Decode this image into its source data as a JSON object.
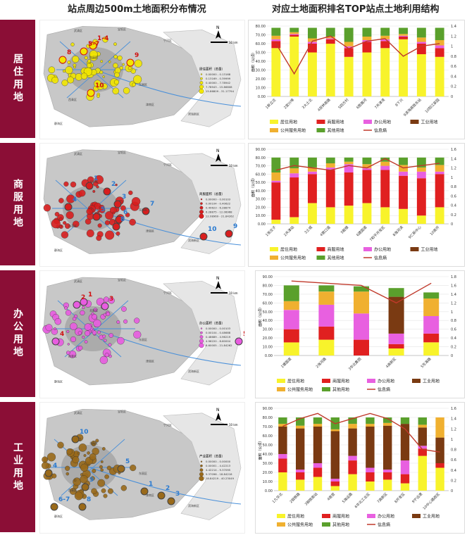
{
  "headers": {
    "left": "站点周边500m土地面积分布情况",
    "right": "对应土地面积排名TOP站点土地利用结构"
  },
  "rows": [
    {
      "label": "居住用地"
    },
    {
      "label": "商服用地"
    },
    {
      "label": "办公用地"
    },
    {
      "label": "工业用地"
    }
  ],
  "maps": [
    {
      "legend_title": "居住面积（总量）",
      "color": "#f2e600",
      "labels": [
        "1-4",
        "5-7",
        "8",
        "9",
        "10"
      ],
      "legend_items": [
        "0.00000 - 0.13168",
        "0.13169 - 0.39999",
        "0.40000 - 7.78942",
        "7.78943 - 15.86808",
        "15.86809 - 31.17794"
      ],
      "districts": [
        "武清区",
        "宝坻区",
        "北辰区",
        "宁河区",
        "东丽区",
        "津南区",
        "西青区",
        "静海区",
        "滨海新区"
      ]
    },
    {
      "legend_title": "商服面积（总量）",
      "color": "#d81e1e",
      "labels": [
        "1",
        "2",
        "3",
        "4",
        "5",
        "6",
        "7",
        "8",
        "9",
        "10"
      ],
      "legend_items": [
        "0.00000 - 0.00103",
        "0.00104 - 0.40622",
        "0.40623 - 6.28874",
        "6.28875 - 12.08968",
        "12.08969 - 21.84262"
      ],
      "districts": [
        "武清区",
        "宝坻区",
        "北辰区",
        "宁河区",
        "东丽区",
        "津南区",
        "西青区",
        "静海区",
        "滨海新区"
      ]
    },
    {
      "legend_title": "办公面积（总量）",
      "color": "#e85ce0",
      "labels": [
        "1",
        "2",
        "3",
        "4",
        "5"
      ],
      "legend_items": [
        "0.00000 - 0.00103",
        "0.00104 - 0.48688",
        "0.48689 - 4.96219",
        "4.96220 - 8.60004",
        "8.60005 - 21.84262"
      ],
      "districts": [
        "武清区",
        "宝坻区",
        "北辰区",
        "宁河区",
        "东丽区",
        "津南区",
        "西青区",
        "静海区",
        "滨海新区"
      ]
    },
    {
      "legend_title": "产业面积（总量）",
      "color": "#9a6a1a",
      "labels": [
        "1",
        "2",
        "3",
        "4",
        "5",
        "6-7",
        "8",
        "9",
        "10"
      ],
      "legend_items": [
        "0.00000 - 0.00000",
        "0.00001 - 4.42213",
        "4.42214 - 9.37095",
        "9.37096 - 18.84218",
        "18.84219 - 40.23049"
      ],
      "districts": [
        "武清区",
        "宝坻区",
        "北辰区",
        "宁河区",
        "东丽区",
        "津南区",
        "西青区",
        "静海区",
        "滨海新区"
      ]
    }
  ],
  "map_common": {
    "north": "N",
    "scale": "10 km"
  },
  "chart_data": [
    {
      "type": "bar",
      "ylabel": "面积（公顷）",
      "ylim": [
        0,
        80
      ],
      "y2lim": [
        0,
        1.4
      ],
      "yticks": [
        0,
        10,
        20,
        30,
        40,
        50,
        60,
        70,
        80
      ],
      "y2ticks": [
        0,
        0.2,
        0.4,
        0.6,
        0.8,
        1,
        1.2,
        1.4
      ],
      "categories": [
        "1新立庄",
        "2宜兴埠",
        "3大土北",
        "4双林南路",
        "5四方村",
        "6胜路河",
        "7天津湾",
        "8下兴",
        "9滨海高铁东站",
        "10阳江家园"
      ],
      "series": [
        {
          "name": "居住用地",
          "color": "#f8f32b",
          "values": [
            55,
            68,
            50,
            60,
            45,
            50,
            55,
            65,
            48,
            45
          ]
        },
        {
          "name": "商服用地",
          "color": "#e02020",
          "values": [
            8,
            2,
            10,
            5,
            10,
            12,
            8,
            3,
            12,
            10
          ]
        },
        {
          "name": "办公用地",
          "color": "#e860e0",
          "values": [
            2,
            1,
            2,
            1,
            2,
            2,
            2,
            1,
            2,
            3
          ]
        },
        {
          "name": "工业用地",
          "color": "#7a3a12",
          "values": [
            0,
            0,
            0,
            0,
            0,
            0,
            0,
            0,
            0,
            0
          ]
        },
        {
          "name": "公共服务用地",
          "color": "#f0b030",
          "values": [
            4,
            2,
            4,
            2,
            5,
            4,
            4,
            2,
            5,
            6
          ]
        },
        {
          "name": "其他用地",
          "color": "#5aa02c",
          "values": [
            9,
            5,
            12,
            10,
            16,
            10,
            9,
            7,
            11,
            14
          ]
        }
      ],
      "line": {
        "name": "信息熵",
        "color": "#c0392b",
        "values": [
          1.05,
          0.45,
          1.1,
          1.2,
          0.95,
          1.1,
          1.15,
          0.8,
          1.0,
          1.05
        ]
      }
    },
    {
      "type": "bar",
      "ylabel": "面积（公顷）",
      "ylim": [
        0,
        90
      ],
      "y2lim": [
        0,
        1.6
      ],
      "yticks": [
        0,
        10,
        20,
        30,
        40,
        50,
        60,
        70,
        80,
        90
      ],
      "y2ticks": [
        0,
        0.2,
        0.4,
        0.6,
        0.8,
        1,
        1.2,
        1.4,
        1.6
      ],
      "categories": [
        "1张庄子",
        "2天津站",
        "3土城",
        "4营口道",
        "5鞍楼",
        "6建国道",
        "7和平开发区",
        "8海河滨",
        "9仁新中心",
        "10南开"
      ],
      "series": [
        {
          "name": "居住用地",
          "color": "#f8f32b",
          "values": [
            5,
            8,
            25,
            20,
            22,
            25,
            20,
            18,
            10,
            20
          ]
        },
        {
          "name": "商服用地",
          "color": "#e02020",
          "values": [
            45,
            48,
            35,
            45,
            40,
            40,
            45,
            40,
            45,
            40
          ]
        },
        {
          "name": "办公用地",
          "color": "#e860e0",
          "values": [
            2,
            5,
            3,
            3,
            10,
            2,
            5,
            5,
            8,
            3
          ]
        },
        {
          "name": "工业用地",
          "color": "#7a3a12",
          "values": [
            0,
            0,
            0,
            0,
            0,
            0,
            0,
            0,
            0,
            0
          ]
        },
        {
          "name": "公共服务用地",
          "color": "#f0b030",
          "values": [
            10,
            6,
            5,
            5,
            3,
            5,
            5,
            8,
            5,
            8
          ]
        },
        {
          "name": "其他用地",
          "color": "#5aa02c",
          "values": [
            18,
            13,
            12,
            7,
            5,
            8,
            5,
            9,
            12,
            9
          ]
        }
      ],
      "line": {
        "name": "信息熵",
        "color": "#c0392b",
        "values": [
          1.15,
          1.25,
          1.2,
          1.15,
          1.25,
          1.2,
          1.4,
          1.2,
          1.25,
          1.3
        ]
      }
    },
    {
      "type": "bar",
      "ylabel": "面积（公顷）",
      "ylim": [
        0,
        90
      ],
      "y2lim": [
        0,
        1.8
      ],
      "yticks": [
        0,
        10,
        20,
        30,
        40,
        50,
        60,
        70,
        80,
        90
      ],
      "y2ticks": [
        0,
        0.2,
        0.4,
        0.6,
        0.8,
        1,
        1.2,
        1.4,
        1.6,
        1.8
      ],
      "categories": [
        "1塘国道",
        "2海河路",
        "3华北集团",
        "4高新区",
        "5东海路"
      ],
      "series": [
        {
          "name": "居住用地",
          "color": "#f8f32b",
          "values": [
            15,
            18,
            0,
            8,
            15
          ]
        },
        {
          "name": "商服用地",
          "color": "#e02020",
          "values": [
            15,
            15,
            18,
            5,
            10
          ]
        },
        {
          "name": "办公用地",
          "color": "#e860e0",
          "values": [
            22,
            25,
            30,
            12,
            20
          ]
        },
        {
          "name": "工业用地",
          "color": "#7a3a12",
          "values": [
            0,
            0,
            0,
            42,
            0
          ]
        },
        {
          "name": "公共服务用地",
          "color": "#f0b030",
          "values": [
            10,
            15,
            25,
            0,
            20
          ]
        },
        {
          "name": "其他用地",
          "color": "#5aa02c",
          "values": [
            18,
            7,
            6,
            10,
            7
          ]
        }
      ],
      "line": {
        "name": "信息熵",
        "color": "#c0392b",
        "values": [
          1.7,
          1.65,
          1.6,
          1.2,
          1.65
        ]
      }
    },
    {
      "type": "bar",
      "ylabel": "面积（公顷）",
      "ylim": [
        0,
        90
      ],
      "y2lim": [
        0,
        1.6
      ],
      "yticks": [
        0,
        10,
        20,
        30,
        40,
        50,
        60,
        70,
        80,
        90
      ],
      "y2ticks": [
        0,
        0.2,
        0.4,
        0.6,
        0.8,
        1,
        1.2,
        1.4,
        1.6
      ],
      "categories": [
        "1九华北",
        "2钢铁路",
        "3钢铁南站",
        "4南官",
        "5海运路",
        "6华北工业区",
        "7高新区",
        "8开发区",
        "9宁远港",
        "10中心路政区"
      ],
      "series": [
        {
          "name": "居住用地",
          "color": "#f8f32b",
          "values": [
            20,
            12,
            15,
            5,
            18,
            10,
            12,
            8,
            38,
            25
          ]
        },
        {
          "name": "商服用地",
          "color": "#e02020",
          "values": [
            15,
            8,
            10,
            5,
            15,
            10,
            8,
            10,
            8,
            5
          ]
        },
        {
          "name": "办公用地",
          "color": "#e860e0",
          "values": [
            5,
            3,
            5,
            3,
            5,
            5,
            3,
            15,
            3,
            0
          ]
        },
        {
          "name": "工业用地",
          "color": "#7a3a12",
          "values": [
            30,
            45,
            40,
            52,
            30,
            45,
            48,
            40,
            20,
            28
          ]
        },
        {
          "name": "公共服务用地",
          "color": "#f0b030",
          "values": [
            3,
            3,
            3,
            2,
            5,
            3,
            3,
            0,
            3,
            22
          ]
        },
        {
          "name": "其他用地",
          "color": "#5aa02c",
          "values": [
            7,
            9,
            7,
            13,
            7,
            7,
            6,
            7,
            8,
            0
          ]
        }
      ],
      "line": {
        "name": "信息熵",
        "color": "#c0392b",
        "values": [
          1.25,
          1.4,
          1.5,
          1.3,
          1.4,
          1.5,
          1.4,
          1.2,
          0.8,
          0.75
        ]
      }
    }
  ]
}
